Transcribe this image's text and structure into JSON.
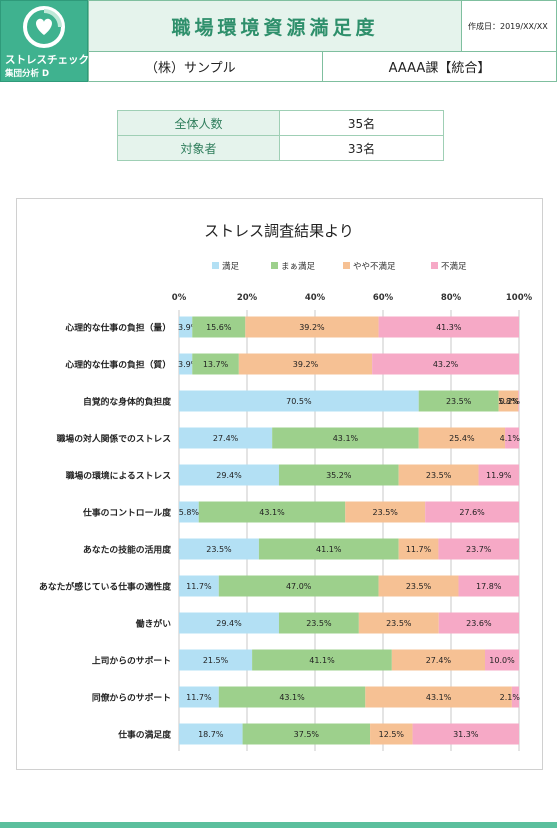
{
  "logo": {
    "name": "ストレスチェック",
    "sub": "集団分析 D"
  },
  "header": {
    "title": "職場環境資源満足度",
    "date": "作成日：2019/XX/XX",
    "company": "（株）サンプル",
    "department": "AAAA課【統合】"
  },
  "info": {
    "total_label": "全体人数",
    "total_value": "35名",
    "target_label": "対象者",
    "target_value": "33名"
  },
  "colors": {
    "brand": "#3fb28f",
    "s1": "#b3e0f4",
    "s2": "#9dd08c",
    "s3": "#f6c194",
    "s4": "#f6a9c6"
  },
  "chart_data": {
    "type": "bar",
    "orientation": "horizontal-stacked-100",
    "title": "ストレス調査結果より",
    "legend_position": "top",
    "xlim": [
      0,
      100
    ],
    "x_ticks": [
      "0%",
      "20%",
      "40%",
      "60%",
      "80%",
      "100%"
    ],
    "categories": [
      "心理的な仕事の負担（量）",
      "心理的な仕事の負担（質）",
      "自覚的な身体的負担度",
      "職場の対人関係でのストレス",
      "職場の環境によるストレス",
      "仕事のコントロール度",
      "あなたの技能の活用度",
      "あなたが感じている仕事の適性度",
      "働きがい",
      "上司からのサポート",
      "同僚からのサポート",
      "仕事の満足度"
    ],
    "series": [
      {
        "name": "満足",
        "values": [
          3.9,
          3.9,
          70.5,
          27.4,
          29.4,
          5.8,
          23.5,
          11.7,
          29.4,
          21.5,
          11.7,
          18.7
        ]
      },
      {
        "name": "まぁ満足",
        "values": [
          15.6,
          13.7,
          23.5,
          43.1,
          35.2,
          43.1,
          41.1,
          47.0,
          23.5,
          41.1,
          43.1,
          37.5
        ]
      },
      {
        "name": "やや不満足",
        "values": [
          39.2,
          39.2,
          5.8,
          25.4,
          23.5,
          23.5,
          11.7,
          23.5,
          23.5,
          27.4,
          43.1,
          12.5
        ]
      },
      {
        "name": "不満足",
        "values": [
          41.3,
          43.2,
          0.2,
          4.1,
          11.9,
          27.6,
          23.7,
          17.8,
          23.6,
          10.0,
          2.1,
          31.3
        ]
      }
    ],
    "value_labels": [
      [
        "3.9%",
        "15.6%",
        "39.2%",
        "41.3%"
      ],
      [
        "3.9%",
        "13.7%",
        "39.2%",
        "43.2%"
      ],
      [
        "70.5%",
        "23.5%",
        "5.8%",
        "0.2%"
      ],
      [
        "27.4%",
        "43.1%",
        "25.4%",
        "4.1%"
      ],
      [
        "29.4%",
        "35.2%",
        "23.5%",
        "11.9%"
      ],
      [
        "5.8%",
        "43.1%",
        "23.5%",
        "27.6%"
      ],
      [
        "23.5%",
        "41.1%",
        "11.7%",
        "23.7%"
      ],
      [
        "11.7%",
        "47.0%",
        "23.5%",
        "17.8%"
      ],
      [
        "29.4%",
        "23.5%",
        "23.5%",
        "23.6%"
      ],
      [
        "21.5%",
        "41.1%",
        "27.4%",
        "10.0%"
      ],
      [
        "11.7%",
        "43.1%",
        "43.1%",
        "2.1%"
      ],
      [
        "18.7%",
        "37.5%",
        "12.5%",
        "31.3%"
      ]
    ]
  }
}
